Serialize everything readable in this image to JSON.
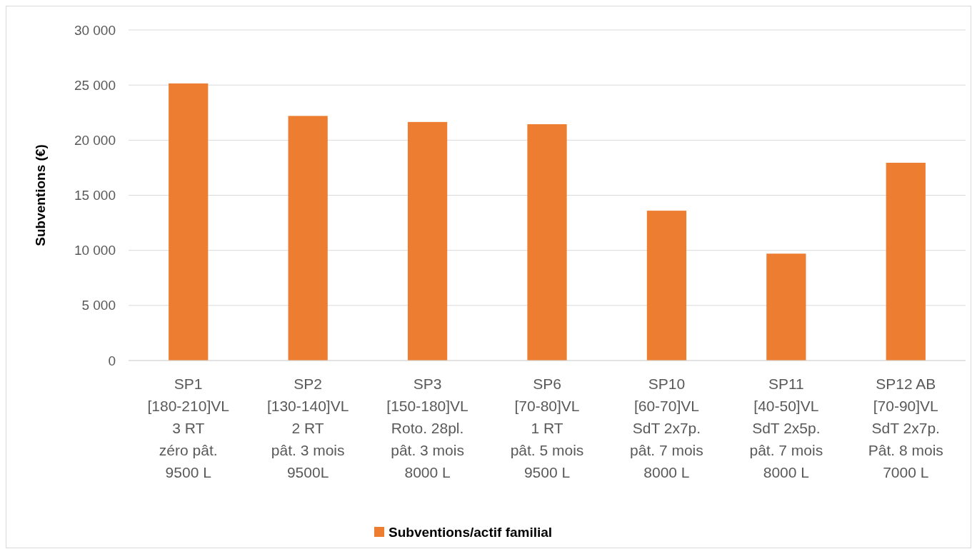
{
  "chart_data": {
    "type": "bar",
    "ylabel": "Subventions (€)",
    "categories": [
      "SP1\n[180-210]VL\n3 RT\nzéro pât.\n9500 L",
      "SP2\n[130-140]VL\n2 RT\npât. 3 mois\n9500L",
      "SP3\n[150-180]VL\nRoto. 28pl.\npât. 3 mois\n8000 L",
      "SP6\n[70-80]VL\n1 RT\npât. 5 mois\n9500 L",
      "SP10\n[60-70]VL\nSdT 2x7p.\npât. 7 mois\n8000 L",
      "SP11\n[40-50]VL\nSdT 2x5p.\npât. 7 mois\n8000 L",
      "SP12 AB\n[70-90]VL\nSdT 2x7p.\nPât. 8 mois\n7000 L"
    ],
    "series": [
      {
        "name": "Subventions/actif familial",
        "color": "#ed7d31",
        "values": [
          25150,
          22200,
          21650,
          21450,
          13600,
          9700,
          17950
        ]
      }
    ],
    "ylim": [
      0,
      30000
    ],
    "yticks": [
      {
        "value": 0,
        "label": "0"
      },
      {
        "value": 5000,
        "label": "5 000"
      },
      {
        "value": 10000,
        "label": "10 000"
      },
      {
        "value": 15000,
        "label": "15 000"
      },
      {
        "value": 20000,
        "label": "20 000"
      },
      {
        "value": 25000,
        "label": "25 000"
      },
      {
        "value": 30000,
        "label": "30 000"
      }
    ],
    "grid": "y",
    "legend": "bottom"
  }
}
